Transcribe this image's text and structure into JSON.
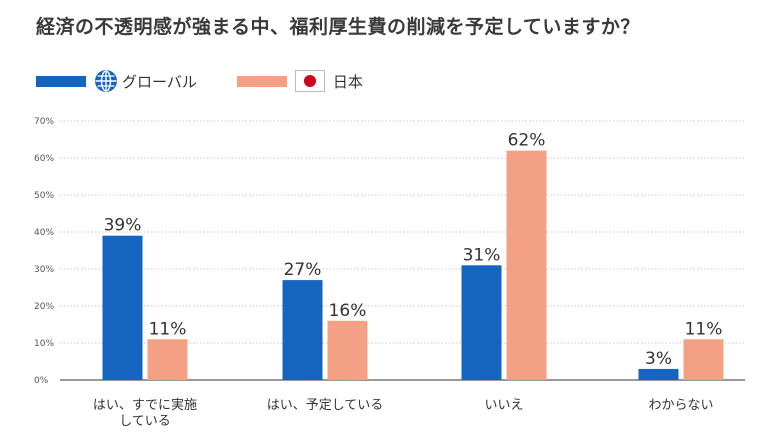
{
  "chart_data": {
    "type": "bar",
    "title": "経済の不透明感が強まる中、福利厚生費の削減を予定していますか？",
    "categories": [
      [
        "はい、すでに実施",
        "している"
      ],
      [
        "はい、予定している"
      ],
      [
        "いいえ"
      ],
      [
        "わからない"
      ]
    ],
    "series": [
      {
        "name": "グローバル",
        "color": "#1565c0",
        "values": [
          39,
          27,
          31,
          3
        ]
      },
      {
        "name": "日本",
        "color": "#f4a084",
        "values": [
          11,
          16,
          62,
          11
        ]
      }
    ],
    "yticks": [
      0,
      10,
      20,
      30,
      40,
      50,
      60,
      70
    ],
    "ylim": [
      0,
      70
    ],
    "value_suffix": "%",
    "tick_suffix": "%",
    "grid": true,
    "legend_position": "top-left",
    "flag_color": "#d0021b"
  }
}
